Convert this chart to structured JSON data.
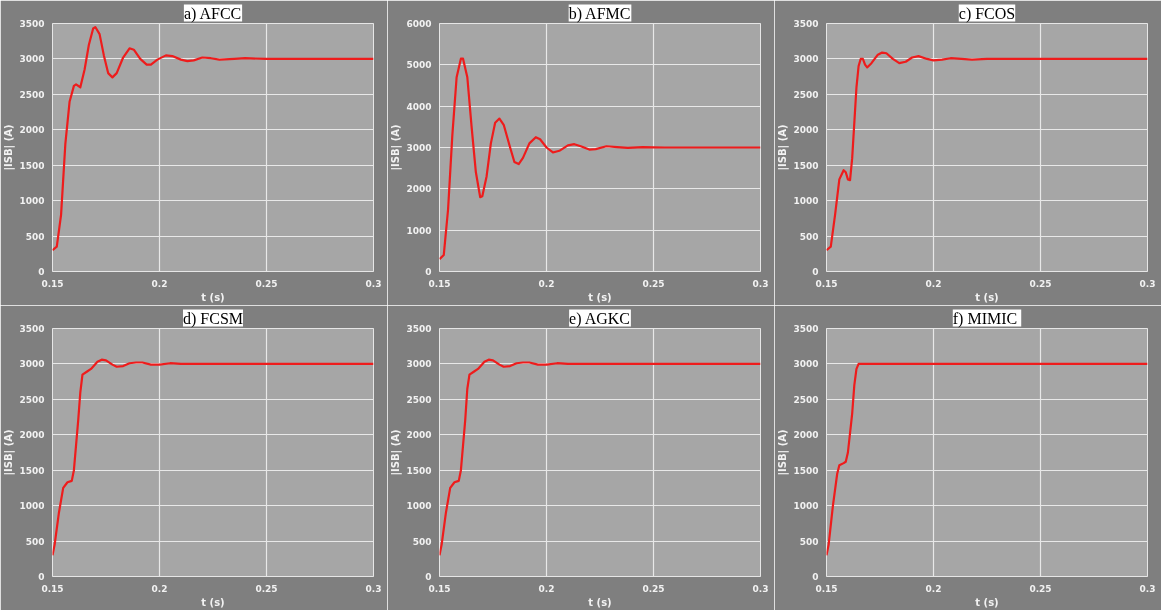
{
  "chart_data": [
    {
      "type": "line",
      "title": "a) AFCC",
      "xlabel": "t (s)",
      "ylabel": "|ISB| (A)",
      "color": "#ee1c1c",
      "grid": true,
      "xlim": [
        0.15,
        0.3
      ],
      "ylim": [
        0,
        3500
      ],
      "xticks": [
        0.15,
        0.2,
        0.25,
        0.3
      ],
      "yticks": [
        0,
        500,
        1000,
        1500,
        2000,
        2500,
        3000,
        3500
      ],
      "x": [
        0.15,
        0.152,
        0.154,
        0.156,
        0.158,
        0.16,
        0.161,
        0.163,
        0.165,
        0.167,
        0.169,
        0.17,
        0.172,
        0.174,
        0.176,
        0.178,
        0.18,
        0.183,
        0.186,
        0.188,
        0.191,
        0.194,
        0.196,
        0.199,
        0.203,
        0.206,
        0.21,
        0.213,
        0.216,
        0.22,
        0.224,
        0.228,
        0.235,
        0.24,
        0.25,
        0.3
      ],
      "values": [
        300,
        350,
        800,
        1800,
        2400,
        2620,
        2640,
        2600,
        2850,
        3200,
        3430,
        3450,
        3350,
        3050,
        2800,
        2740,
        2800,
        3020,
        3150,
        3130,
        3000,
        2920,
        2920,
        2990,
        3050,
        3040,
        2990,
        2970,
        2980,
        3020,
        3010,
        2990,
        3000,
        3010,
        3000,
        3000
      ]
    },
    {
      "type": "line",
      "title": "b) AFMC",
      "xlabel": "t (s)",
      "ylabel": "|ISB| (A)",
      "color": "#ee1c1c",
      "grid": true,
      "xlim": [
        0.15,
        0.3
      ],
      "ylim": [
        0,
        6000
      ],
      "xticks": [
        0.15,
        0.2,
        0.25,
        0.3
      ],
      "yticks": [
        0,
        1000,
        2000,
        3000,
        4000,
        5000,
        6000
      ],
      "x": [
        0.15,
        0.152,
        0.154,
        0.156,
        0.158,
        0.16,
        0.161,
        0.163,
        0.165,
        0.167,
        0.169,
        0.17,
        0.172,
        0.174,
        0.176,
        0.178,
        0.18,
        0.183,
        0.185,
        0.187,
        0.189,
        0.192,
        0.195,
        0.197,
        0.2,
        0.203,
        0.206,
        0.21,
        0.213,
        0.216,
        0.22,
        0.223,
        0.228,
        0.233,
        0.238,
        0.245,
        0.255,
        0.3
      ],
      "values": [
        300,
        400,
        1500,
        3300,
        4700,
        5150,
        5150,
        4700,
        3500,
        2400,
        1800,
        1820,
        2300,
        3100,
        3600,
        3700,
        3550,
        3000,
        2650,
        2600,
        2750,
        3100,
        3250,
        3200,
        3000,
        2880,
        2920,
        3050,
        3080,
        3030,
        2950,
        2960,
        3030,
        3010,
        2990,
        3010,
        3000,
        3000
      ]
    },
    {
      "type": "line",
      "title": "c) FCOS",
      "xlabel": "t (s)",
      "ylabel": "|ISB| (A)",
      "color": "#ee1c1c",
      "grid": true,
      "xlim": [
        0.15,
        0.3
      ],
      "ylim": [
        0,
        3500
      ],
      "xticks": [
        0.15,
        0.2,
        0.25,
        0.3
      ],
      "yticks": [
        0,
        500,
        1000,
        1500,
        2000,
        2500,
        3000,
        3500
      ],
      "x": [
        0.15,
        0.152,
        0.154,
        0.156,
        0.158,
        0.159,
        0.16,
        0.161,
        0.162,
        0.164,
        0.165,
        0.166,
        0.167,
        0.168,
        0.169,
        0.171,
        0.174,
        0.176,
        0.178,
        0.181,
        0.184,
        0.187,
        0.19,
        0.193,
        0.197,
        0.2,
        0.204,
        0.208,
        0.213,
        0.218,
        0.225,
        0.3
      ],
      "values": [
        300,
        350,
        800,
        1300,
        1430,
        1400,
        1300,
        1290,
        1600,
        2600,
        2900,
        3000,
        3000,
        2920,
        2880,
        2940,
        3060,
        3090,
        3080,
        3000,
        2940,
        2960,
        3020,
        3040,
        3000,
        2980,
        2990,
        3010,
        3000,
        2990,
        3000,
        3000
      ]
    },
    {
      "type": "line",
      "title": "d) FCSM",
      "xlabel": "t (s)",
      "ylabel": "|ISB| (A)",
      "color": "#ee1c1c",
      "grid": true,
      "xlim": [
        0.15,
        0.3
      ],
      "ylim": [
        0,
        3500
      ],
      "xticks": [
        0.15,
        0.2,
        0.25,
        0.3
      ],
      "yticks": [
        0,
        500,
        1000,
        1500,
        2000,
        2500,
        3000,
        3500
      ],
      "x": [
        0.15,
        0.151,
        0.153,
        0.155,
        0.157,
        0.159,
        0.16,
        0.162,
        0.163,
        0.164,
        0.166,
        0.168,
        0.171,
        0.173,
        0.175,
        0.178,
        0.18,
        0.183,
        0.186,
        0.189,
        0.192,
        0.196,
        0.2,
        0.205,
        0.21,
        0.3
      ],
      "values": [
        300,
        450,
        900,
        1250,
        1330,
        1350,
        1500,
        2200,
        2600,
        2850,
        2890,
        2930,
        3030,
        3060,
        3050,
        2990,
        2960,
        2970,
        3010,
        3020,
        3020,
        2990,
        2990,
        3010,
        3000,
        3000
      ]
    },
    {
      "type": "line",
      "title": "e) AGKC",
      "xlabel": "t (s)",
      "ylabel": "|ISB| (A)",
      "color": "#ee1c1c",
      "grid": true,
      "xlim": [
        0.15,
        0.3
      ],
      "ylim": [
        0,
        3500
      ],
      "xticks": [
        0.15,
        0.2,
        0.25,
        0.3
      ],
      "yticks": [
        0,
        500,
        1000,
        1500,
        2000,
        2500,
        3000,
        3500
      ],
      "x": [
        0.15,
        0.151,
        0.153,
        0.155,
        0.157,
        0.159,
        0.16,
        0.162,
        0.163,
        0.164,
        0.166,
        0.168,
        0.171,
        0.173,
        0.175,
        0.178,
        0.18,
        0.183,
        0.186,
        0.189,
        0.192,
        0.196,
        0.2,
        0.205,
        0.21,
        0.3
      ],
      "values": [
        300,
        450,
        900,
        1250,
        1330,
        1350,
        1500,
        2200,
        2650,
        2850,
        2890,
        2930,
        3030,
        3060,
        3050,
        2990,
        2960,
        2970,
        3010,
        3020,
        3020,
        2990,
        2990,
        3010,
        3000,
        3000
      ]
    },
    {
      "type": "line",
      "title": "f)  MIMIC",
      "xlabel": "t (s)",
      "ylabel": "|ISB| (A)",
      "color": "#ee1c1c",
      "grid": true,
      "xlim": [
        0.15,
        0.3
      ],
      "ylim": [
        0,
        3500
      ],
      "xticks": [
        0.15,
        0.2,
        0.25,
        0.3
      ],
      "yticks": [
        0,
        500,
        1000,
        1500,
        2000,
        2500,
        3000,
        3500
      ],
      "x": [
        0.15,
        0.151,
        0.153,
        0.155,
        0.156,
        0.158,
        0.159,
        0.16,
        0.162,
        0.163,
        0.164,
        0.165,
        0.167,
        0.3
      ],
      "values": [
        300,
        450,
        1000,
        1450,
        1570,
        1600,
        1620,
        1750,
        2300,
        2700,
        2930,
        3000,
        3000,
        3000
      ]
    }
  ]
}
